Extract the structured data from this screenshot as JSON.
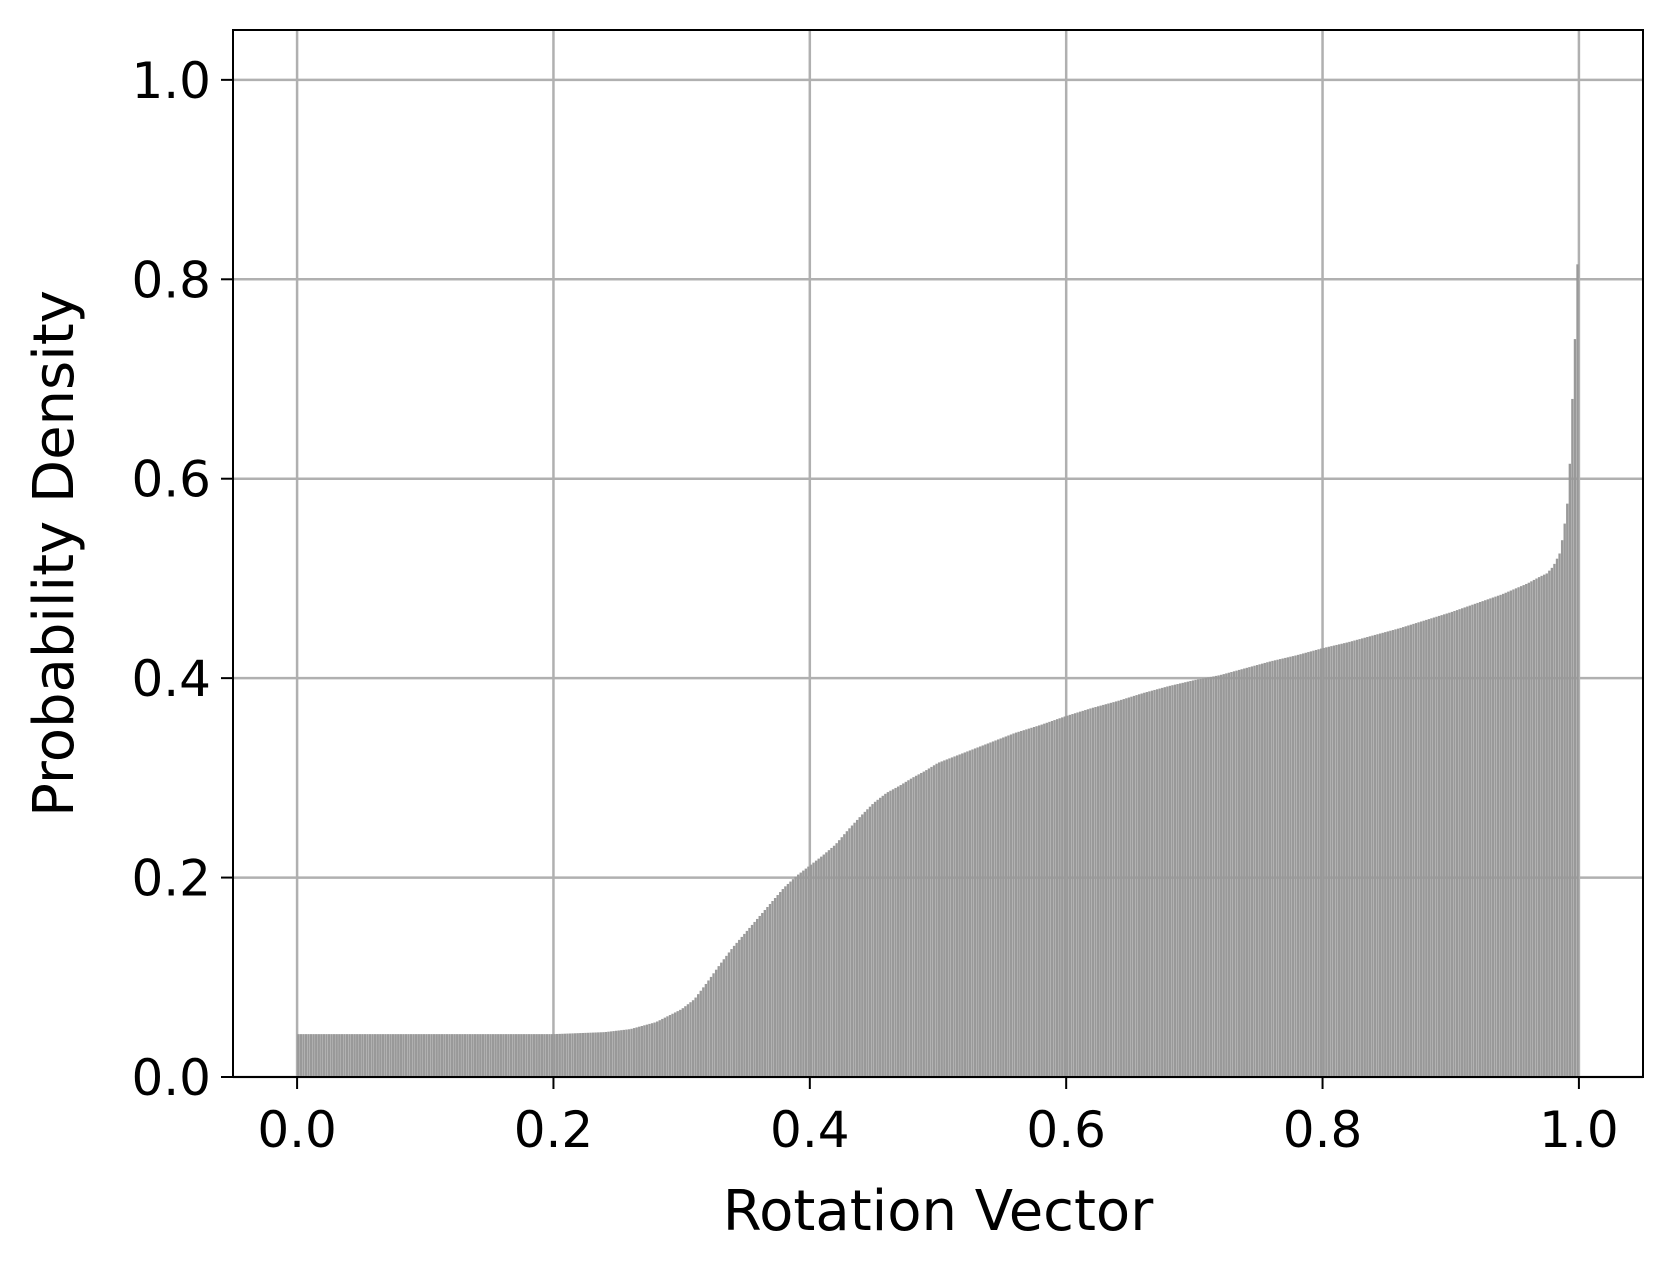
{
  "chart_data": {
    "type": "bar",
    "title": "",
    "xlabel": "Rotation Vector",
    "ylabel": "Probability Density",
    "xlim": [
      -0.05,
      1.05
    ],
    "ylim": [
      0.0,
      1.05
    ],
    "grid": true,
    "bar_color": "#999999",
    "x_ticks": [
      {
        "value": 0.0,
        "label": "0.0"
      },
      {
        "value": 0.2,
        "label": "0.2"
      },
      {
        "value": 0.4,
        "label": "0.4"
      },
      {
        "value": 0.6,
        "label": "0.6"
      },
      {
        "value": 0.8,
        "label": "0.8"
      },
      {
        "value": 1.0,
        "label": "1.0"
      }
    ],
    "y_ticks": [
      {
        "value": 0.0,
        "label": "0.0"
      },
      {
        "value": 0.2,
        "label": "0.2"
      },
      {
        "value": 0.4,
        "label": "0.4"
      },
      {
        "value": 0.6,
        "label": "0.6"
      },
      {
        "value": 0.8,
        "label": "0.8"
      },
      {
        "value": 1.0,
        "label": "1.0"
      }
    ],
    "curve_points": [
      [
        0.0,
        0.043
      ],
      [
        0.1,
        0.043
      ],
      [
        0.2,
        0.043
      ],
      [
        0.22,
        0.044
      ],
      [
        0.24,
        0.045
      ],
      [
        0.26,
        0.048
      ],
      [
        0.28,
        0.055
      ],
      [
        0.3,
        0.068
      ],
      [
        0.31,
        0.078
      ],
      [
        0.32,
        0.095
      ],
      [
        0.33,
        0.113
      ],
      [
        0.34,
        0.13
      ],
      [
        0.35,
        0.145
      ],
      [
        0.36,
        0.16
      ],
      [
        0.37,
        0.175
      ],
      [
        0.38,
        0.19
      ],
      [
        0.39,
        0.202
      ],
      [
        0.4,
        0.212
      ],
      [
        0.41,
        0.222
      ],
      [
        0.42,
        0.233
      ],
      [
        0.43,
        0.248
      ],
      [
        0.44,
        0.262
      ],
      [
        0.45,
        0.275
      ],
      [
        0.46,
        0.285
      ],
      [
        0.47,
        0.292
      ],
      [
        0.48,
        0.3
      ],
      [
        0.49,
        0.307
      ],
      [
        0.5,
        0.315
      ],
      [
        0.52,
        0.325
      ],
      [
        0.54,
        0.335
      ],
      [
        0.56,
        0.345
      ],
      [
        0.58,
        0.353
      ],
      [
        0.6,
        0.362
      ],
      [
        0.62,
        0.37
      ],
      [
        0.64,
        0.377
      ],
      [
        0.66,
        0.385
      ],
      [
        0.68,
        0.392
      ],
      [
        0.7,
        0.398
      ],
      [
        0.72,
        0.403
      ],
      [
        0.74,
        0.41
      ],
      [
        0.76,
        0.417
      ],
      [
        0.78,
        0.423
      ],
      [
        0.8,
        0.43
      ],
      [
        0.82,
        0.436
      ],
      [
        0.84,
        0.443
      ],
      [
        0.86,
        0.45
      ],
      [
        0.88,
        0.458
      ],
      [
        0.9,
        0.466
      ],
      [
        0.92,
        0.475
      ],
      [
        0.94,
        0.484
      ],
      [
        0.96,
        0.495
      ],
      [
        0.97,
        0.502
      ],
      [
        0.975,
        0.505
      ],
      [
        0.98,
        0.512
      ],
      [
        0.985,
        0.525
      ],
      [
        0.988,
        0.545
      ],
      [
        0.991,
        0.575
      ],
      [
        0.993,
        0.615
      ],
      [
        0.995,
        0.68
      ],
      [
        0.997,
        0.74
      ],
      [
        0.999,
        0.815
      ],
      [
        1.0,
        0.815
      ]
    ],
    "bin_width": 0.002
  }
}
